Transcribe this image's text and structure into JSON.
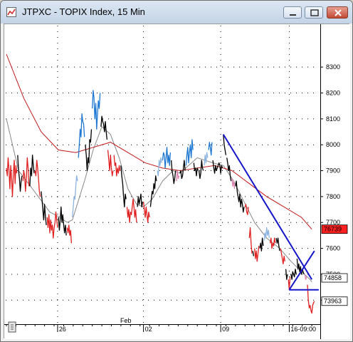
{
  "window": {
    "title": "JTPXC - TOPIX Index, 15 Min",
    "buttons": [
      "minimize",
      "maximize",
      "close"
    ]
  },
  "chart_data": {
    "type": "line",
    "title": "JTPXC - TOPIX Index, 15 Min",
    "interval": "15 Min",
    "ylim": [
      7310,
      8460
    ],
    "y_ticks": [
      {
        "value": 8300,
        "label": "8300"
      },
      {
        "value": 8200,
        "label": "8200"
      },
      {
        "value": 8100,
        "label": "8100"
      },
      {
        "value": 8000,
        "label": "8000"
      },
      {
        "value": 7900,
        "label": "7900"
      },
      {
        "value": 7800,
        "label": "7800"
      },
      {
        "value": 7700,
        "label": "7700"
      },
      {
        "value": 7600,
        "label": "7600"
      },
      {
        "value": 7500,
        "label": "7500"
      },
      {
        "value": 7400,
        "label": "7400"
      }
    ],
    "x_month_label": "Feb",
    "x_ticks": [
      "26",
      "02",
      "09",
      "16-09:00"
    ],
    "x_tick_bars": [
      59,
      158,
      247,
      326
    ],
    "price_labels": [
      {
        "label": "76739",
        "value": 7674,
        "color": "#ff2020",
        "text_color": "#ffffff"
      },
      {
        "label": "74858",
        "value": 7486,
        "color": "#ffffff",
        "text_color": "#000000"
      },
      {
        "label": "73963",
        "value": 7396,
        "color": "#ffffff",
        "text_color": "#000000"
      }
    ],
    "grid": true,
    "price_series": [
      {
        "start": 0,
        "color": "#e02020",
        "values": [
          7910,
          7880,
          7950,
          7900,
          7830,
          7920,
          7870,
          7800,
          7890,
          7940,
          7850,
          7920,
          7890
        ]
      },
      {
        "start": 13,
        "color": "#000000",
        "values": [
          7960,
          7900,
          7870,
          7820,
          7860,
          7880
        ]
      },
      {
        "start": 19,
        "color": "#e02020",
        "values": [
          7860,
          7900,
          7880,
          7820,
          7870,
          7950,
          7910,
          7840
        ]
      },
      {
        "start": 27,
        "color": "#000000",
        "values": [
          7840,
          7910,
          7880,
          7960,
          7920,
          7890
        ]
      },
      {
        "start": 33,
        "color": "#e02020",
        "values": [
          7900,
          7880,
          7940,
          7910,
          7870,
          7820,
          7800
        ]
      },
      {
        "start": 40,
        "color": "#000000",
        "values": [
          7820,
          7790,
          7750,
          7710,
          7770,
          7720,
          7690
        ]
      },
      {
        "start": 47,
        "color": "#e02020",
        "values": [
          7720,
          7680,
          7730,
          7660,
          7710,
          7670,
          7690,
          7640,
          7680,
          7700,
          7740,
          7710,
          7680
        ]
      },
      {
        "start": 60,
        "color": "#000000",
        "values": [
          7720,
          7670,
          7710,
          7760,
          7700,
          7730,
          7690,
          7660,
          7690,
          7650
        ]
      },
      {
        "start": 70,
        "color": "#e02020",
        "values": [
          7680,
          7660,
          7690,
          7650,
          7670,
          7620
        ]
      },
      {
        "start": 76,
        "color": "#8cb4e0",
        "values": [
          7720,
          7760,
          7800,
          7790,
          7840,
          7880,
          7860
        ]
      },
      {
        "start": 83,
        "color": "#1e78d2",
        "values": [
          7950,
          8000,
          8060,
          8030,
          8120,
          8090,
          8080,
          8030
        ]
      },
      {
        "start": 91,
        "color": "#000000",
        "values": [
          8000,
          7960,
          7900,
          7950,
          7930,
          8020,
          8010,
          8060
        ]
      },
      {
        "start": 99,
        "color": "#1e78d2",
        "values": [
          8140,
          8210,
          8180,
          8100,
          8160,
          8060,
          8120,
          8170,
          8140,
          8200
        ]
      },
      {
        "start": 109,
        "color": "#000000",
        "values": [
          8070,
          8110,
          8090,
          8080,
          8050,
          8090,
          8050,
          8020
        ]
      },
      {
        "start": 117,
        "color": "#e02020",
        "values": [
          7980,
          7940,
          7900,
          7960,
          7910,
          7880,
          7900
        ]
      },
      {
        "start": 124,
        "color": "#e02020",
        "values": [
          7960,
          7920,
          7930,
          7880,
          7910,
          7890,
          7920,
          7900
        ]
      },
      {
        "start": 132,
        "color": "#000000",
        "values": [
          7920,
          7880,
          7850,
          7800,
          7760,
          7810,
          7790
        ]
      },
      {
        "start": 139,
        "color": "#e02020",
        "values": [
          7760,
          7720,
          7750,
          7700,
          7740,
          7730,
          7760,
          7790,
          7760,
          7720,
          7750,
          7700
        ]
      },
      {
        "start": 151,
        "color": "#000000",
        "values": [
          7760,
          7800,
          7770,
          7790,
          7810,
          7760,
          7780
        ]
      },
      {
        "start": 158,
        "color": "#e02020",
        "values": [
          7780,
          7750,
          7720,
          7760,
          7730,
          7700,
          7740,
          7720
        ]
      },
      {
        "start": 166,
        "color": "#000000",
        "values": [
          7760,
          7790,
          7820,
          7810,
          7850,
          7830,
          7880,
          7860
        ]
      },
      {
        "start": 174,
        "color": "#8cb4e0",
        "values": [
          7900,
          7880,
          7940,
          7920,
          7950,
          7930
        ]
      },
      {
        "start": 180,
        "color": "#1e78d2",
        "values": [
          7940,
          7970,
          7960,
          7910,
          7950,
          7990,
          7930,
          7960,
          7920,
          7970
        ]
      },
      {
        "start": 190,
        "color": "#000000",
        "values": [
          7940,
          7900,
          7880,
          7850,
          7870,
          7900
        ]
      },
      {
        "start": 196,
        "color": "#e080b0",
        "values": [
          7860,
          7900,
          7870,
          7880
        ]
      },
      {
        "start": 200,
        "color": "#000000",
        "values": [
          7890,
          7900,
          7870,
          7880,
          7910,
          7940,
          7900
        ]
      },
      {
        "start": 207,
        "color": "#1e78d2",
        "values": [
          7920,
          7960,
          7990,
          7930,
          7970,
          8000,
          7950,
          8020,
          7980
        ]
      },
      {
        "start": 216,
        "color": "#000000",
        "values": [
          7930,
          7900,
          7910,
          7880,
          7910,
          7900
        ]
      },
      {
        "start": 222,
        "color": "#000000",
        "values": [
          7900,
          7870,
          7890,
          7940,
          7910,
          7900
        ]
      },
      {
        "start": 228,
        "color": "#8cb4e0",
        "values": [
          7920,
          7960,
          7930,
          7970,
          7950
        ]
      },
      {
        "start": 233,
        "color": "#1e78d2",
        "values": [
          7980,
          8010,
          7990,
          7960,
          8010
        ]
      },
      {
        "start": 238,
        "color": "#000000",
        "values": [
          7940,
          7910,
          7890,
          7920,
          7900,
          7910,
          7920,
          7930,
          7920,
          7890,
          7920,
          7910
        ]
      },
      {
        "start": 250,
        "color": "#000000",
        "values": [
          8040,
          8000,
          7980,
          7960
        ]
      },
      {
        "start": 254,
        "color": "#000000",
        "values": [
          7950,
          7930,
          7900,
          7920,
          7880,
          7860
        ]
      },
      {
        "start": 260,
        "color": "#e080b0",
        "values": [
          7870,
          7840,
          7860,
          7830
        ]
      },
      {
        "start": 264,
        "color": "#000000",
        "values": [
          7840,
          7860,
          7820,
          7800,
          7780,
          7810,
          7760,
          7790,
          7770,
          7740,
          7760
        ]
      },
      {
        "start": 275,
        "color": "#e02020",
        "values": [
          7760,
          7770,
          7740,
          7730,
          7760
        ]
      },
      {
        "start": 280,
        "color": "#e02020",
        "values": [
          7640,
          7680,
          7620,
          7580
        ]
      },
      {
        "start": 284,
        "color": "#000000",
        "values": [
          7590,
          7570
        ]
      },
      {
        "start": 286,
        "color": "#e02020",
        "values": [
          7600,
          7560,
          7590,
          7550,
          7580,
          7610
        ]
      },
      {
        "start": 292,
        "color": "#000000",
        "values": [
          7600,
          7620,
          7590,
          7640,
          7610
        ]
      },
      {
        "start": 297,
        "color": "#8cb4e0",
        "values": [
          7630,
          7660,
          7640,
          7680,
          7650,
          7670,
          7640
        ]
      },
      {
        "start": 304,
        "color": "#e02020",
        "values": [
          7620,
          7640,
          7600,
          7620,
          7610,
          7640,
          7620
        ]
      },
      {
        "start": 311,
        "color": "#000000",
        "values": [
          7640,
          7620,
          7640,
          7610,
          7590
        ]
      },
      {
        "start": 316,
        "color": "#e02020",
        "values": [
          7600,
          7580,
          7560,
          7540,
          7570,
          7550
        ]
      },
      {
        "start": 322,
        "color": "#000000",
        "values": [
          7520,
          7480,
          7500
        ]
      },
      {
        "start": 325,
        "color": "#e02020",
        "values": [
          7480,
          7440,
          7490
        ]
      },
      {
        "start": 328,
        "color": "#000000",
        "values": [
          7500,
          7480,
          7510,
          7500,
          7490,
          7520,
          7500
        ]
      },
      {
        "start": 335,
        "color": "#000000",
        "values": [
          7560,
          7520,
          7540,
          7510,
          7530,
          7500,
          7520,
          7510,
          7500
        ]
      },
      {
        "start": 344,
        "color": "#e080b0",
        "values": [
          7500,
          7480,
          7490
        ]
      },
      {
        "start": 347,
        "color": "#e02020",
        "values": [
          7460,
          7400,
          7370,
          7380,
          7360,
          7350,
          7380,
          7390,
          7396
        ]
      }
    ],
    "ma_short": {
      "color": "#888888",
      "points": [
        [
          0,
          8100
        ],
        [
          14,
          7900
        ],
        [
          30,
          7830
        ],
        [
          50,
          7740
        ],
        [
          62,
          7720
        ],
        [
          70,
          7700
        ],
        [
          76,
          7710
        ],
        [
          90,
          7860
        ],
        [
          100,
          7980
        ],
        [
          110,
          8070
        ],
        [
          120,
          8040
        ],
        [
          130,
          7950
        ],
        [
          140,
          7830
        ],
        [
          150,
          7770
        ],
        [
          158,
          7760
        ],
        [
          168,
          7790
        ],
        [
          180,
          7860
        ],
        [
          192,
          7900
        ],
        [
          200,
          7890
        ],
        [
          210,
          7920
        ],
        [
          220,
          7950
        ],
        [
          238,
          7930
        ],
        [
          250,
          7920
        ],
        [
          262,
          7860
        ],
        [
          274,
          7780
        ],
        [
          286,
          7700
        ],
        [
          300,
          7640
        ],
        [
          315,
          7600
        ],
        [
          328,
          7550
        ],
        [
          340,
          7510
        ],
        [
          350,
          7480
        ],
        [
          352,
          7470
        ]
      ]
    },
    "ma_long": {
      "color": "#c01818",
      "points": [
        [
          0,
          8350
        ],
        [
          20,
          8180
        ],
        [
          40,
          8050
        ],
        [
          60,
          7980
        ],
        [
          80,
          7970
        ],
        [
          100,
          7990
        ],
        [
          120,
          8010
        ],
        [
          140,
          7970
        ],
        [
          160,
          7930
        ],
        [
          180,
          7910
        ],
        [
          200,
          7900
        ],
        [
          220,
          7910
        ],
        [
          240,
          7920
        ],
        [
          260,
          7900
        ],
        [
          280,
          7850
        ],
        [
          300,
          7800
        ],
        [
          320,
          7760
        ],
        [
          340,
          7720
        ],
        [
          352,
          7674
        ]
      ]
    },
    "trendlines": [
      {
        "color": "#1515cc",
        "from": [
          250,
          8040
        ],
        "to": [
          352,
          7480
        ]
      },
      {
        "color": "#1515cc",
        "from": [
          326,
          7440
        ],
        "to": [
          355,
          7590
        ]
      },
      {
        "color": "#1515cc",
        "from": [
          326,
          7440
        ],
        "to": [
          360,
          7440
        ]
      }
    ]
  }
}
